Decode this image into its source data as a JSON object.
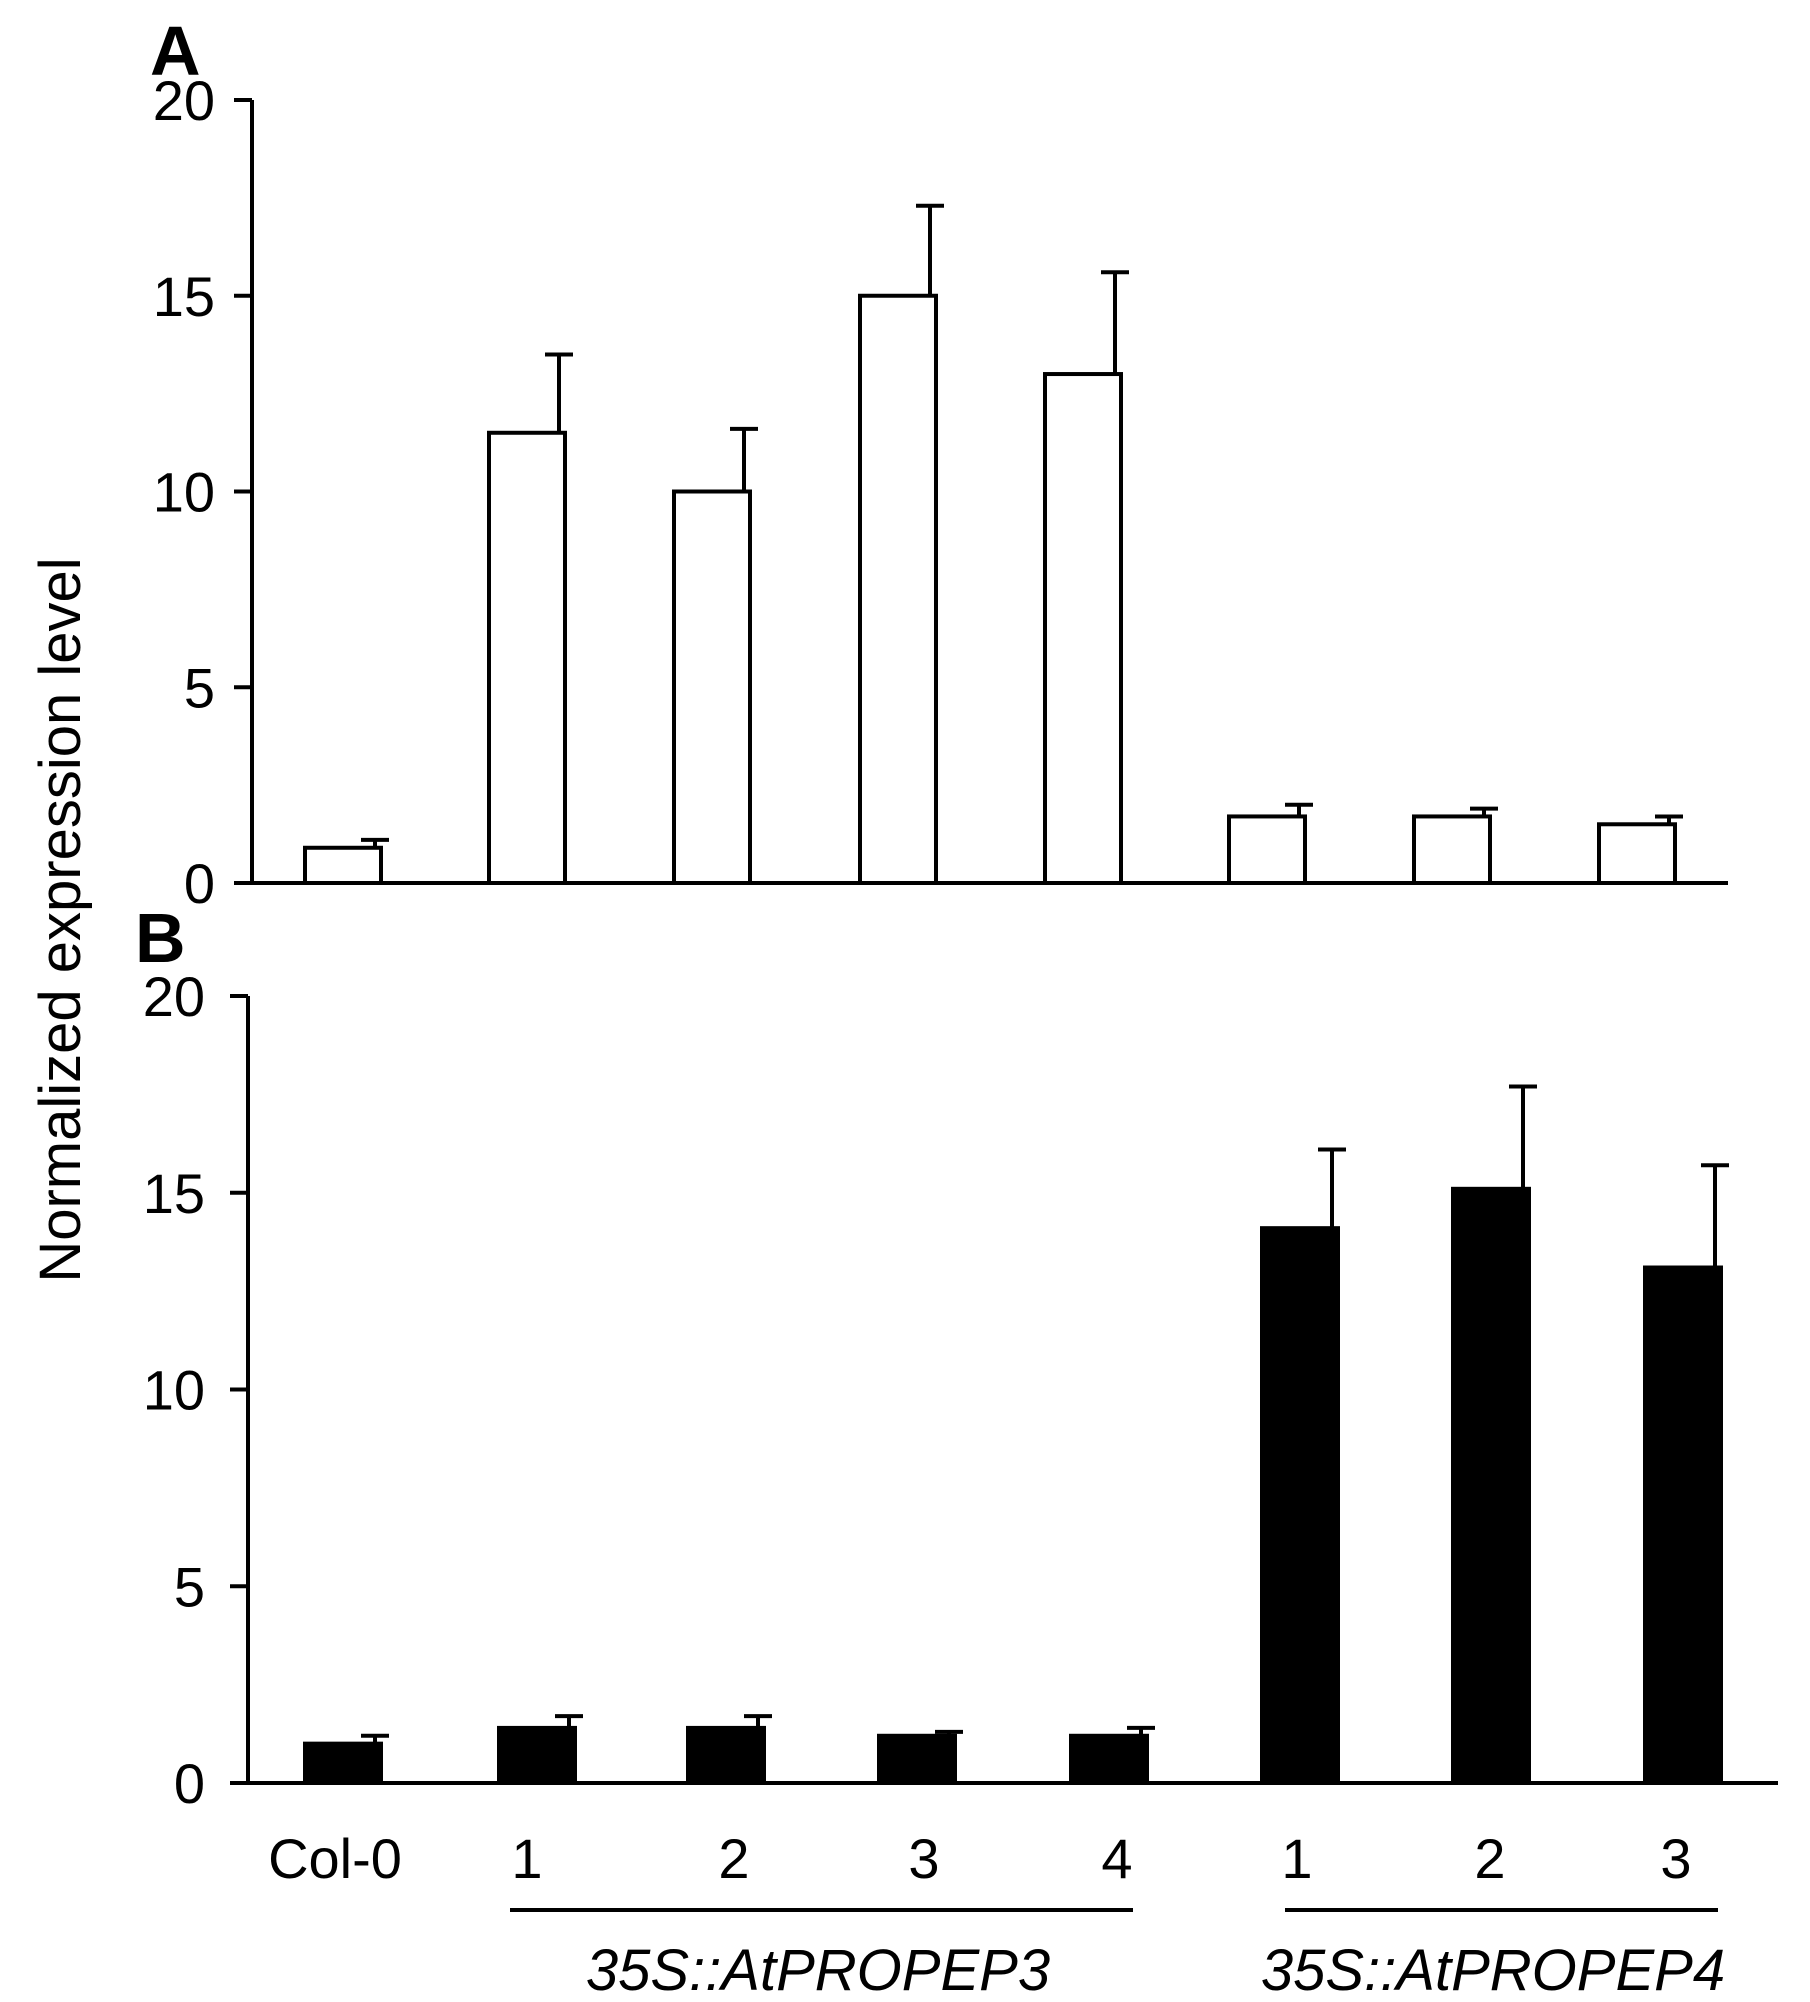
{
  "ylabel": "Normalized expression level",
  "panels": [
    {
      "label": "A",
      "color": "#ffffff"
    },
    {
      "label": "B",
      "color": "#000000"
    }
  ],
  "groups": [
    {
      "label": "35S::AtPROPEP3"
    },
    {
      "label": "35S::AtPROPEP4"
    }
  ],
  "chart_data": [
    {
      "type": "bar",
      "panel": "A",
      "categories": [
        "Col-0",
        "1",
        "2",
        "3",
        "4",
        "1",
        "2",
        "3"
      ],
      "values": [
        0.9,
        11.5,
        10.0,
        15.0,
        13.0,
        1.7,
        1.7,
        1.5
      ],
      "errors": [
        0.2,
        2.0,
        1.6,
        2.3,
        2.6,
        0.3,
        0.2,
        0.2
      ],
      "ylim": [
        0,
        20
      ],
      "yticks": [
        0,
        5,
        10,
        15,
        20
      ],
      "ylabel": "Normalized expression level"
    },
    {
      "type": "bar",
      "panel": "B",
      "categories": [
        "Col-0",
        "1",
        "2",
        "3",
        "4",
        "1",
        "2",
        "3"
      ],
      "values": [
        1.0,
        1.4,
        1.4,
        1.2,
        1.2,
        14.1,
        15.1,
        13.1
      ],
      "errors": [
        0.2,
        0.3,
        0.3,
        0.1,
        0.2,
        2.0,
        2.6,
        2.6
      ],
      "ylim": [
        0,
        20
      ],
      "yticks": [
        0,
        5,
        10,
        15,
        20
      ],
      "ylabel": "Normalized expression level"
    }
  ]
}
